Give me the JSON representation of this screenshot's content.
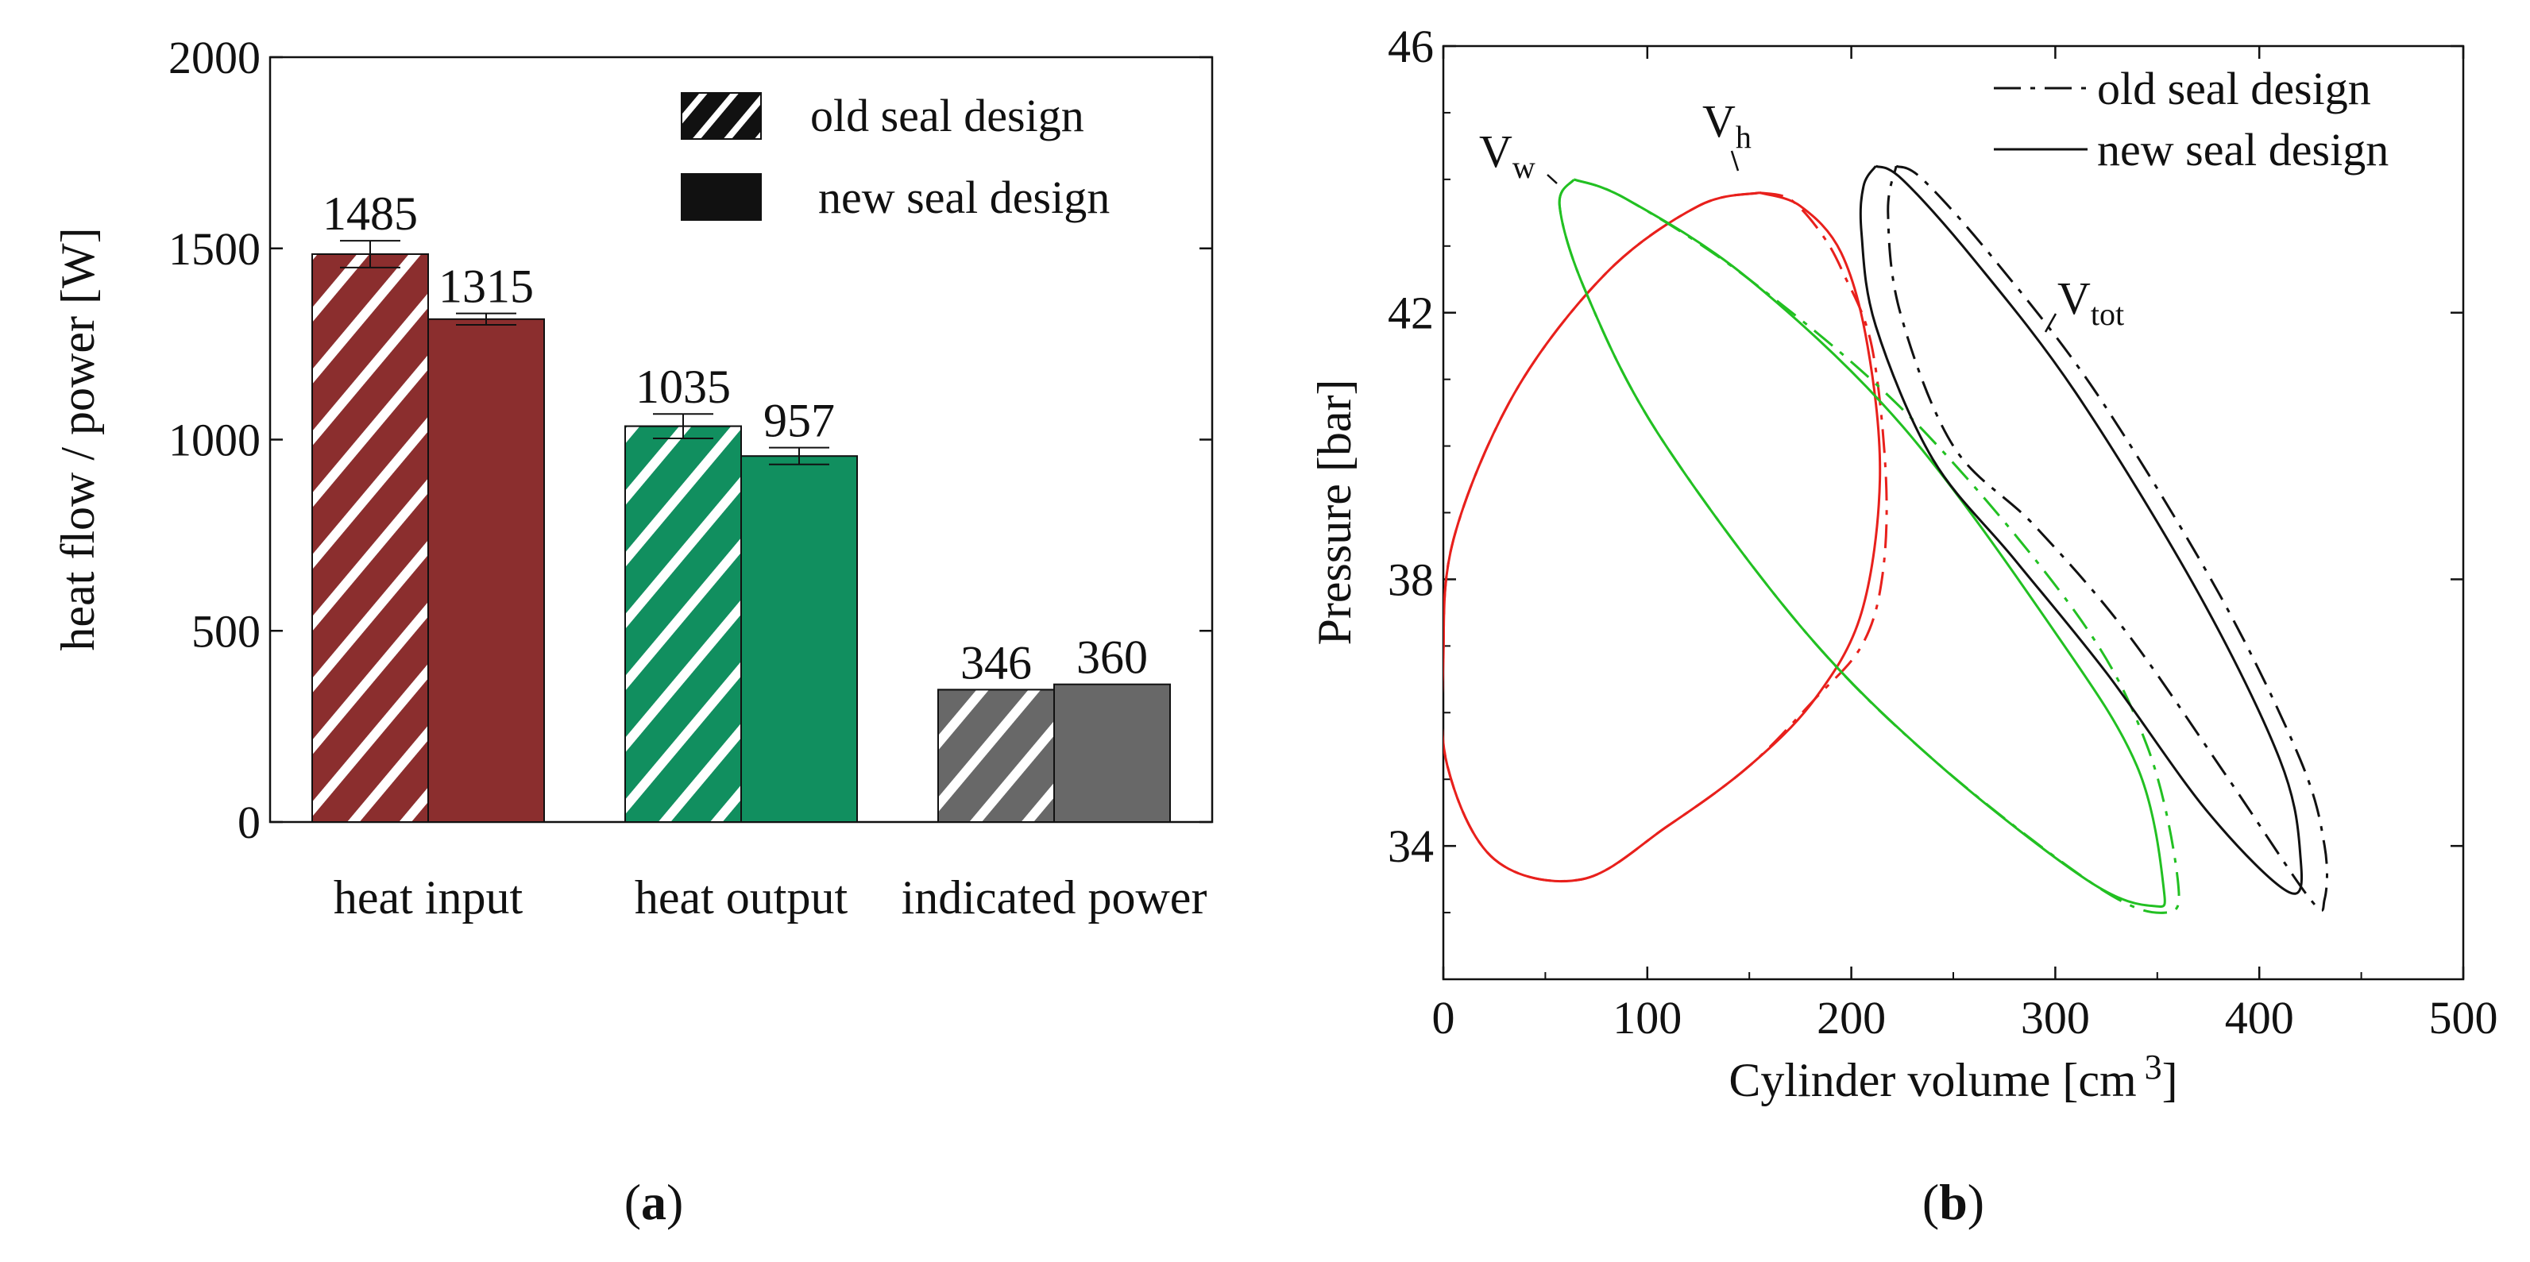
{
  "colors": {
    "heat_input": "#8b2e2e",
    "heat_output": "#118f5f",
    "indicated_power": "#686868",
    "hot": "#e8201c",
    "working": "#22c022",
    "total": "#111111",
    "hatch": "#ffffff"
  },
  "chart_data": [
    {
      "type": "bar",
      "panel": "(a)",
      "panel_letter": "a",
      "title": "",
      "xlabel": "",
      "ylabel": "heat flow / power [W]",
      "ylim": [
        0,
        2000
      ],
      "yticks": [
        0,
        500,
        1000,
        1500,
        2000
      ],
      "categories": [
        "heat input",
        "heat output",
        "indicated power"
      ],
      "series": [
        {
          "name": "old seal design",
          "pattern": "hatched",
          "values": [
            1485,
            1035,
            346
          ],
          "errors": [
            35,
            32,
            0
          ]
        },
        {
          "name": "new seal design",
          "pattern": "solid",
          "values": [
            1315,
            957,
            360
          ],
          "errors": [
            15,
            22,
            0
          ]
        }
      ],
      "data_labels": {
        "old": [
          "1485",
          "1035",
          "346"
        ],
        "new": [
          "1315",
          "957",
          "360"
        ]
      },
      "legend": [
        {
          "label": "old seal design",
          "pattern": "hatched"
        },
        {
          "label": "new seal design",
          "pattern": "solid"
        }
      ],
      "legend_position": "top-right"
    },
    {
      "type": "line",
      "panel": "(b)",
      "panel_letter": "b",
      "title": "",
      "xlabel": "Cylinder volume [cm",
      "xlabel_sup": "3",
      "xlabel_close": "]",
      "ylabel": "Pressure [bar]",
      "xlim": [
        0,
        500
      ],
      "ylim": [
        32,
        46
      ],
      "xticks": [
        0,
        100,
        200,
        300,
        400,
        500
      ],
      "yticks": [
        34,
        38,
        42,
        46
      ],
      "legend": [
        {
          "label": "old seal design",
          "dash": "dash-dot"
        },
        {
          "label": "new seal design",
          "dash": "solid"
        }
      ],
      "legend_position": "top-right",
      "curve_labels": {
        "hot": {
          "main": "V",
          "sub": "h"
        },
        "working": {
          "main": "V",
          "sub": "w"
        },
        "total": {
          "main": "V",
          "sub": "tot"
        }
      },
      "series": [
        {
          "name": "V_h old seal design",
          "group": "hot",
          "dash": "dash-dot",
          "x": [
            155,
            170,
            185,
            196,
            210,
            217,
            215,
            205,
            182,
            150,
            110,
            68,
            25,
            2,
            0,
            5,
            35,
            80,
            125,
            155
          ],
          "y": [
            43.8,
            43.7,
            43.2,
            42.6,
            41.5,
            39.5,
            38.0,
            37.0,
            36.2,
            35.2,
            34.3,
            33.5,
            33.8,
            35.2,
            36.8,
            38.6,
            40.8,
            42.6,
            43.6,
            43.8
          ]
        },
        {
          "name": "V_h new seal design",
          "group": "hot",
          "dash": "solid",
          "x": [
            155,
            175,
            195,
            208,
            214,
            205,
            182,
            150,
            110,
            68,
            25,
            2,
            0,
            5,
            35,
            80,
            125,
            155
          ],
          "y": [
            43.8,
            43.6,
            42.9,
            41.5,
            39.5,
            37.5,
            36.2,
            35.2,
            34.3,
            33.5,
            33.8,
            35.2,
            36.8,
            38.6,
            40.8,
            42.6,
            43.6,
            43.8
          ]
        },
        {
          "name": "V_w old seal design",
          "group": "working",
          "dash": "dash-dot",
          "x": [
            64,
            90,
            150,
            230,
            310,
            345,
            360,
            354,
            320,
            240,
            175,
            105,
            70,
            57,
            64
          ],
          "y": [
            44.0,
            43.7,
            42.5,
            40.4,
            37.5,
            35.5,
            33.5,
            33.0,
            33.4,
            35.3,
            37.3,
            40.2,
            42.3,
            43.6,
            44.0
          ]
        },
        {
          "name": "V_w new seal design",
          "group": "working",
          "dash": "solid",
          "x": [
            64,
            90,
            150,
            225,
            300,
            340,
            353,
            348,
            315,
            240,
            175,
            105,
            70,
            57,
            64
          ],
          "y": [
            44.0,
            43.7,
            42.5,
            40.3,
            37.2,
            35.2,
            33.4,
            33.1,
            33.5,
            35.3,
            37.3,
            40.2,
            42.3,
            43.6,
            44.0
          ]
        },
        {
          "name": "V_tot old seal design",
          "group": "total",
          "dash": "dash-dot",
          "x": [
            222,
            235,
            270,
            320,
            380,
            420,
            432,
            432,
            425,
            385,
            335,
            290,
            250,
            224,
            218,
            222
          ],
          "y": [
            44.2,
            44.0,
            42.8,
            40.8,
            37.8,
            35.3,
            34.0,
            33.2,
            33.2,
            35.0,
            37.2,
            38.8,
            40.0,
            42.0,
            43.5,
            44.2
          ]
        },
        {
          "name": "V_tot new seal design",
          "group": "total",
          "dash": "solid",
          "x": [
            212,
            225,
            260,
            310,
            370,
            410,
            420,
            415,
            375,
            325,
            280,
            240,
            212,
            205,
            206,
            212
          ],
          "y": [
            44.2,
            44.0,
            42.8,
            40.8,
            37.8,
            35.3,
            33.9,
            33.3,
            34.5,
            36.6,
            38.3,
            39.8,
            41.8,
            43.2,
            43.9,
            44.2
          ]
        }
      ]
    }
  ]
}
